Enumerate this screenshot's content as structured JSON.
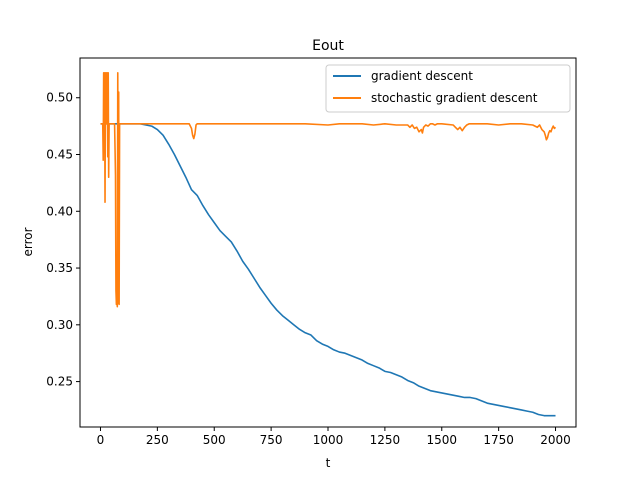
{
  "chart_data": {
    "type": "line",
    "title": "Eout",
    "xlabel": "t",
    "ylabel": "error",
    "xlim": [
      -90,
      2090
    ],
    "ylim": [
      0.21,
      0.535
    ],
    "xticks": [
      0,
      250,
      500,
      750,
      1000,
      1250,
      1500,
      1750,
      2000
    ],
    "yticks": [
      0.25,
      0.3,
      0.35,
      0.4,
      0.45,
      0.5
    ],
    "ytick_labels": [
      "0.25",
      "0.30",
      "0.35",
      "0.40",
      "0.45",
      "0.50"
    ],
    "grid": false,
    "legend_position": "top-right",
    "series": [
      {
        "name": "gradient descent",
        "color": "#1f77b4",
        "x": [
          0,
          50,
          100,
          150,
          175,
          200,
          225,
          250,
          275,
          300,
          325,
          350,
          375,
          400,
          425,
          450,
          475,
          500,
          525,
          550,
          575,
          600,
          625,
          650,
          675,
          700,
          725,
          750,
          775,
          800,
          825,
          850,
          875,
          900,
          925,
          950,
          975,
          1000,
          1025,
          1050,
          1075,
          1100,
          1125,
          1150,
          1175,
          1200,
          1225,
          1250,
          1275,
          1300,
          1325,
          1350,
          1375,
          1400,
          1425,
          1450,
          1475,
          1500,
          1525,
          1550,
          1575,
          1600,
          1625,
          1650,
          1675,
          1700,
          1725,
          1750,
          1775,
          1800,
          1825,
          1850,
          1875,
          1900,
          1925,
          1950,
          1975,
          2000
        ],
        "y": [
          0.477,
          0.477,
          0.477,
          0.477,
          0.477,
          0.476,
          0.475,
          0.472,
          0.467,
          0.459,
          0.45,
          0.44,
          0.43,
          0.419,
          0.414,
          0.405,
          0.397,
          0.39,
          0.383,
          0.378,
          0.373,
          0.365,
          0.356,
          0.349,
          0.341,
          0.333,
          0.326,
          0.319,
          0.313,
          0.308,
          0.304,
          0.3,
          0.296,
          0.293,
          0.291,
          0.286,
          0.283,
          0.281,
          0.278,
          0.276,
          0.275,
          0.273,
          0.271,
          0.269,
          0.266,
          0.264,
          0.262,
          0.259,
          0.258,
          0.256,
          0.254,
          0.251,
          0.249,
          0.246,
          0.244,
          0.242,
          0.241,
          0.24,
          0.239,
          0.238,
          0.237,
          0.236,
          0.236,
          0.235,
          0.233,
          0.231,
          0.23,
          0.229,
          0.228,
          0.227,
          0.226,
          0.225,
          0.224,
          0.223,
          0.221,
          0.22,
          0.22,
          0.22
        ]
      },
      {
        "name": "stochastic gradient descent",
        "color": "#ff7f0e",
        "x": [
          0,
          10,
          12,
          14,
          16,
          18,
          20,
          22,
          24,
          26,
          28,
          30,
          32,
          34,
          36,
          38,
          40,
          42,
          44,
          46,
          48,
          50,
          55,
          60,
          62,
          64,
          66,
          68,
          70,
          72,
          74,
          76,
          78,
          80,
          82,
          84,
          86,
          88,
          90,
          100,
          150,
          200,
          250,
          300,
          350,
          390,
          400,
          405,
          410,
          415,
          420,
          425,
          430,
          440,
          450,
          500,
          600,
          700,
          800,
          900,
          1000,
          1050,
          1100,
          1150,
          1200,
          1250,
          1300,
          1350,
          1360,
          1370,
          1380,
          1390,
          1400,
          1410,
          1415,
          1420,
          1430,
          1440,
          1450,
          1460,
          1470,
          1480,
          1490,
          1500,
          1550,
          1560,
          1570,
          1580,
          1590,
          1600,
          1610,
          1620,
          1650,
          1700,
          1750,
          1800,
          1850,
          1900,
          1920,
          1930,
          1940,
          1950,
          1955,
          1960,
          1965,
          1970,
          1975,
          1980,
          1985,
          1990,
          1995,
          2000
        ],
        "y": [
          0.477,
          0.477,
          0.445,
          0.522,
          0.455,
          0.522,
          0.408,
          0.522,
          0.477,
          0.522,
          0.477,
          0.522,
          0.448,
          0.522,
          0.43,
          0.477,
          0.477,
          0.477,
          0.477,
          0.477,
          0.477,
          0.477,
          0.477,
          0.477,
          0.477,
          0.455,
          0.432,
          0.33,
          0.318,
          0.325,
          0.316,
          0.522,
          0.319,
          0.505,
          0.318,
          0.477,
          0.477,
          0.477,
          0.477,
          0.477,
          0.477,
          0.477,
          0.477,
          0.477,
          0.477,
          0.477,
          0.473,
          0.467,
          0.464,
          0.468,
          0.476,
          0.477,
          0.477,
          0.477,
          0.477,
          0.477,
          0.477,
          0.477,
          0.477,
          0.477,
          0.476,
          0.477,
          0.477,
          0.477,
          0.476,
          0.477,
          0.476,
          0.476,
          0.474,
          0.476,
          0.473,
          0.474,
          0.47,
          0.472,
          0.469,
          0.474,
          0.476,
          0.475,
          0.477,
          0.477,
          0.476,
          0.477,
          0.477,
          0.477,
          0.476,
          0.474,
          0.472,
          0.474,
          0.471,
          0.474,
          0.476,
          0.477,
          0.477,
          0.477,
          0.476,
          0.477,
          0.477,
          0.476,
          0.474,
          0.476,
          0.472,
          0.47,
          0.467,
          0.463,
          0.465,
          0.469,
          0.471,
          0.47,
          0.473,
          0.475,
          0.473,
          0.474
        ]
      }
    ]
  }
}
